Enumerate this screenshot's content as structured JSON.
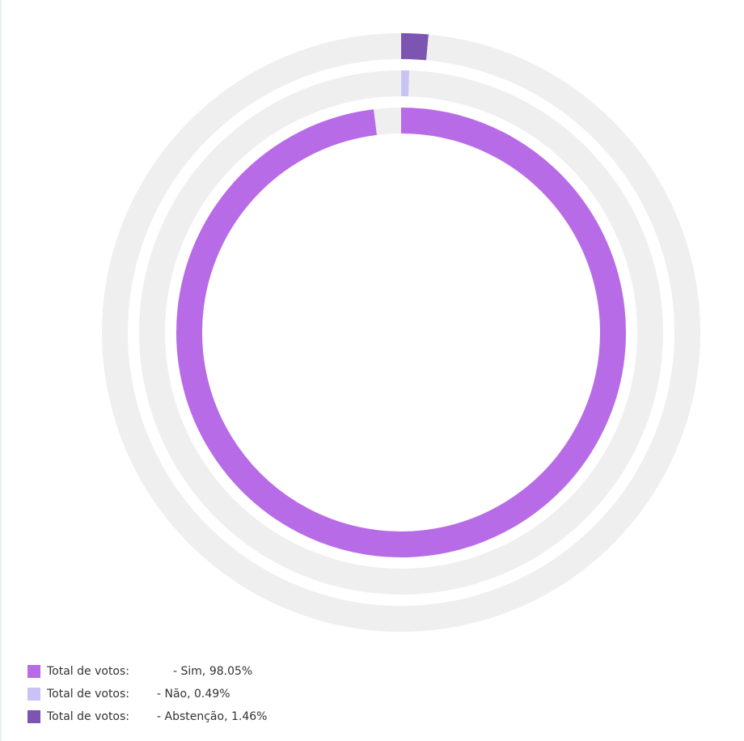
{
  "chart_data": {
    "type": "pie",
    "variant": "concentric-rings",
    "series": [
      {
        "name": "Total de votos:",
        "category": "- Sim, 98.05%",
        "value": 98.05,
        "color": "#b86be6"
      },
      {
        "name": "Total de votos:",
        "category": "- Não, 0.49%",
        "value": 0.49,
        "color": "#c9c3f5"
      },
      {
        "name": "Total de votos:",
        "category": "- Abstenção, 1.46%",
        "value": 1.46,
        "color": "#7c55b3"
      }
    ],
    "track_color": "#efefef",
    "legend_position": "bottom-left"
  }
}
